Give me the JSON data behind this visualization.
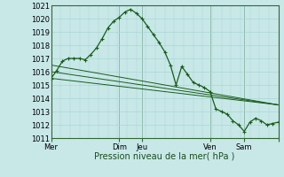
{
  "bg_color": "#c8e8e8",
  "grid_color": "#b8dede",
  "line_color": "#1a5c1a",
  "xlabel": "Pression niveau de la mer( hPa )",
  "ylim": [
    1011,
    1021
  ],
  "yticks": [
    1011,
    1012,
    1013,
    1014,
    1015,
    1016,
    1017,
    1018,
    1019,
    1020,
    1021
  ],
  "xtick_positions": [
    0,
    72,
    96,
    168,
    204,
    240
  ],
  "xtick_labels": [
    "Mer",
    "Dim",
    "Jeu",
    "Ven",
    "Sam",
    ""
  ],
  "xmin": 0,
  "xmax": 240,
  "series1_x": [
    0,
    6,
    12,
    18,
    24,
    30,
    36,
    42,
    48,
    54,
    60,
    66,
    72,
    78,
    84,
    90,
    96,
    102,
    108,
    114,
    120,
    126,
    132,
    138,
    144,
    150,
    156,
    162,
    168,
    174,
    180,
    186,
    192,
    198,
    204,
    210,
    216,
    222,
    228,
    234,
    240
  ],
  "series1_y": [
    1015.5,
    1016.1,
    1016.8,
    1017.0,
    1017.0,
    1017.0,
    1016.9,
    1017.3,
    1017.8,
    1018.5,
    1019.3,
    1019.8,
    1020.1,
    1020.5,
    1020.7,
    1020.4,
    1020.0,
    1019.4,
    1018.8,
    1018.2,
    1017.5,
    1016.5,
    1015.0,
    1016.4,
    1015.8,
    1015.2,
    1015.0,
    1014.8,
    1014.5,
    1013.2,
    1013.0,
    1012.8,
    1012.3,
    1012.0,
    1011.5,
    1012.2,
    1012.5,
    1012.3,
    1012.0,
    1012.1,
    1012.2
  ],
  "flat_lines": [
    {
      "x": [
        0,
        240
      ],
      "y": [
        1015.5,
        1013.5
      ]
    },
    {
      "x": [
        0,
        240
      ],
      "y": [
        1016.0,
        1013.5
      ]
    },
    {
      "x": [
        0,
        240
      ],
      "y": [
        1016.5,
        1013.5
      ]
    }
  ],
  "vlines": [
    0,
    72,
    96,
    168,
    204,
    240
  ],
  "minor_xtick_count": 24
}
